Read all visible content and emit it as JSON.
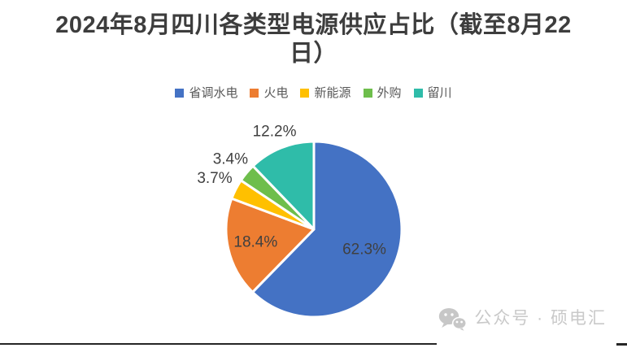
{
  "chart_data": {
    "type": "pie",
    "title": "2024年8月四川各类型电源供应占比（截至8月22日）",
    "unit": "%",
    "start_angle_deg": 0,
    "direction": "clockwise",
    "legend_position": "top",
    "slices": [
      {
        "label": "省调水电",
        "value": 62.3,
        "display": "62.3%",
        "color": "#4472C4",
        "label_position": "inside",
        "label_r": 0.62
      },
      {
        "label": "火电",
        "value": 18.4,
        "display": "18.4%",
        "color": "#ED7D31",
        "label_position": "inside",
        "label_r": 0.68
      },
      {
        "label": "新能源",
        "value": 3.7,
        "display": "3.7%",
        "color": "#FFC000",
        "label_position": "outside",
        "label_r": 1.27
      },
      {
        "label": "外购",
        "value": 3.4,
        "display": "3.4%",
        "color": "#6EBE4C",
        "label_position": "outside",
        "label_r": 1.24
      },
      {
        "label": "留川",
        "value": 12.2,
        "display": "12.2%",
        "color": "#2FBCA9",
        "label_position": "outside",
        "label_r": 1.2
      }
    ],
    "label_color": "#404040",
    "slice_border_color": "#ffffff"
  },
  "watermark": {
    "icon": "wechat-icon",
    "text": "公众号 · 硕电汇"
  }
}
